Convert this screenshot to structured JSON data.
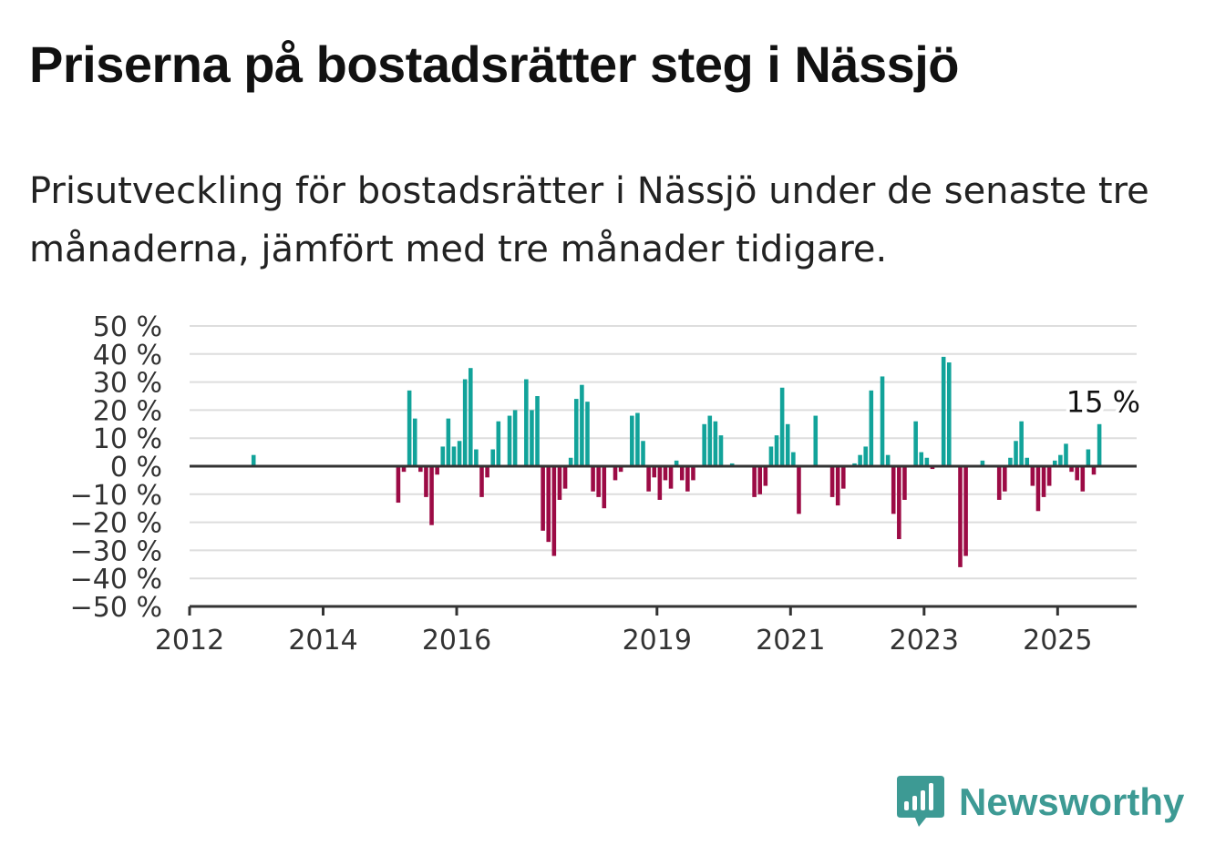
{
  "title": "Priserna på bostadsrätter steg i Nässjö",
  "subtitle": "Prisutveckling för bostadsrätter i Nässjö under de senaste tre månaderna, jämfört med tre månader tidigare.",
  "brand": {
    "name": "Newsworthy",
    "color": "#3d9a94"
  },
  "colors": {
    "positive": "#12a39a",
    "negative": "#9c0b45",
    "grid": "#dddddd",
    "axis": "#333333"
  },
  "chart_data": {
    "type": "bar",
    "title": "",
    "xlabel": "",
    "ylabel": "",
    "ylim": [
      -50,
      50
    ],
    "yticks": [
      50,
      40,
      30,
      20,
      10,
      0,
      -10,
      -20,
      -30,
      -40,
      -50
    ],
    "ytick_labels": [
      "50 %",
      "40 %",
      "30 %",
      "20 %",
      "10 %",
      "0 %",
      "−10 %",
      "−20 %",
      "−30 %",
      "−40 %",
      "−50 %"
    ],
    "xticks": [
      "2012",
      "2014",
      "2016",
      "2019",
      "2021",
      "2023",
      "2025"
    ],
    "grid": true,
    "annotation": {
      "x": "2025-07",
      "label": "15 %"
    },
    "points": [
      {
        "x": "2012-12",
        "y": 4
      },
      {
        "x": "2015-02",
        "y": -13
      },
      {
        "x": "2015-03",
        "y": -2
      },
      {
        "x": "2015-04",
        "y": 27
      },
      {
        "x": "2015-05",
        "y": 17
      },
      {
        "x": "2015-06",
        "y": -2
      },
      {
        "x": "2015-07",
        "y": -11
      },
      {
        "x": "2015-08",
        "y": -21
      },
      {
        "x": "2015-09",
        "y": -3
      },
      {
        "x": "2015-10",
        "y": 7
      },
      {
        "x": "2015-11",
        "y": 17
      },
      {
        "x": "2015-12",
        "y": 7
      },
      {
        "x": "2016-01",
        "y": 9
      },
      {
        "x": "2016-02",
        "y": 31
      },
      {
        "x": "2016-03",
        "y": 35
      },
      {
        "x": "2016-04",
        "y": 6
      },
      {
        "x": "2016-05",
        "y": -11
      },
      {
        "x": "2016-06",
        "y": -4
      },
      {
        "x": "2016-07",
        "y": 6
      },
      {
        "x": "2016-08",
        "y": 16
      },
      {
        "x": "2016-09",
        "y": 0
      },
      {
        "x": "2016-10",
        "y": 18
      },
      {
        "x": "2016-11",
        "y": 20
      },
      {
        "x": "2016-12",
        "y": 0
      },
      {
        "x": "2017-01",
        "y": 31
      },
      {
        "x": "2017-02",
        "y": 20
      },
      {
        "x": "2017-03",
        "y": 25
      },
      {
        "x": "2017-04",
        "y": -23
      },
      {
        "x": "2017-05",
        "y": -27
      },
      {
        "x": "2017-06",
        "y": -32
      },
      {
        "x": "2017-07",
        "y": -12
      },
      {
        "x": "2017-08",
        "y": -8
      },
      {
        "x": "2017-09",
        "y": 3
      },
      {
        "x": "2017-10",
        "y": 24
      },
      {
        "x": "2017-11",
        "y": 29
      },
      {
        "x": "2017-12",
        "y": 23
      },
      {
        "x": "2018-01",
        "y": -9
      },
      {
        "x": "2018-02",
        "y": -11
      },
      {
        "x": "2018-03",
        "y": -15
      },
      {
        "x": "2018-04",
        "y": 0
      },
      {
        "x": "2018-05",
        "y": -5
      },
      {
        "x": "2018-06",
        "y": -2
      },
      {
        "x": "2018-07",
        "y": 0
      },
      {
        "x": "2018-08",
        "y": 18
      },
      {
        "x": "2018-09",
        "y": 19
      },
      {
        "x": "2018-10",
        "y": 9
      },
      {
        "x": "2018-11",
        "y": -9
      },
      {
        "x": "2018-12",
        "y": -4
      },
      {
        "x": "2019-01",
        "y": -12
      },
      {
        "x": "2019-02",
        "y": -5
      },
      {
        "x": "2019-03",
        "y": -8
      },
      {
        "x": "2019-04",
        "y": 2
      },
      {
        "x": "2019-05",
        "y": -5
      },
      {
        "x": "2019-06",
        "y": -9
      },
      {
        "x": "2019-07",
        "y": -5
      },
      {
        "x": "2019-08",
        "y": 0
      },
      {
        "x": "2019-09",
        "y": 15
      },
      {
        "x": "2019-10",
        "y": 18
      },
      {
        "x": "2019-11",
        "y": 16
      },
      {
        "x": "2019-12",
        "y": 11
      },
      {
        "x": "2020-01",
        "y": 0
      },
      {
        "x": "2020-02",
        "y": 1
      },
      {
        "x": "2020-03",
        "y": 0
      },
      {
        "x": "2020-04",
        "y": 0
      },
      {
        "x": "2020-05",
        "y": 0
      },
      {
        "x": "2020-06",
        "y": -11
      },
      {
        "x": "2020-07",
        "y": -10
      },
      {
        "x": "2020-08",
        "y": -7
      },
      {
        "x": "2020-09",
        "y": 7
      },
      {
        "x": "2020-10",
        "y": 11
      },
      {
        "x": "2020-11",
        "y": 28
      },
      {
        "x": "2020-12",
        "y": 15
      },
      {
        "x": "2021-01",
        "y": 5
      },
      {
        "x": "2021-02",
        "y": -17
      },
      {
        "x": "2021-03",
        "y": 0
      },
      {
        "x": "2021-04",
        "y": 0
      },
      {
        "x": "2021-05",
        "y": 18
      },
      {
        "x": "2021-06",
        "y": 0
      },
      {
        "x": "2021-07",
        "y": 0
      },
      {
        "x": "2021-08",
        "y": -11
      },
      {
        "x": "2021-09",
        "y": -14
      },
      {
        "x": "2021-10",
        "y": -8
      },
      {
        "x": "2021-11",
        "y": 0
      },
      {
        "x": "2021-12",
        "y": 1
      },
      {
        "x": "2022-01",
        "y": 4
      },
      {
        "x": "2022-02",
        "y": 7
      },
      {
        "x": "2022-03",
        "y": 27
      },
      {
        "x": "2022-04",
        "y": 0
      },
      {
        "x": "2022-05",
        "y": 32
      },
      {
        "x": "2022-06",
        "y": 4
      },
      {
        "x": "2022-07",
        "y": -17
      },
      {
        "x": "2022-08",
        "y": -26
      },
      {
        "x": "2022-09",
        "y": -12
      },
      {
        "x": "2022-10",
        "y": 0
      },
      {
        "x": "2022-11",
        "y": 16
      },
      {
        "x": "2022-12",
        "y": 5
      },
      {
        "x": "2023-01",
        "y": 3
      },
      {
        "x": "2023-02",
        "y": -1
      },
      {
        "x": "2023-03",
        "y": 0
      },
      {
        "x": "2023-04",
        "y": 39
      },
      {
        "x": "2023-05",
        "y": 37
      },
      {
        "x": "2023-06",
        "y": 0
      },
      {
        "x": "2023-07",
        "y": -36
      },
      {
        "x": "2023-08",
        "y": -32
      },
      {
        "x": "2023-09",
        "y": 0
      },
      {
        "x": "2023-10",
        "y": 0
      },
      {
        "x": "2023-11",
        "y": 2
      },
      {
        "x": "2023-12",
        "y": 0
      },
      {
        "x": "2024-01",
        "y": 0
      },
      {
        "x": "2024-02",
        "y": -12
      },
      {
        "x": "2024-03",
        "y": -9
      },
      {
        "x": "2024-04",
        "y": 3
      },
      {
        "x": "2024-05",
        "y": 9
      },
      {
        "x": "2024-06",
        "y": 16
      },
      {
        "x": "2024-07",
        "y": 3
      },
      {
        "x": "2024-08",
        "y": -7
      },
      {
        "x": "2024-09",
        "y": -16
      },
      {
        "x": "2024-10",
        "y": -11
      },
      {
        "x": "2024-11",
        "y": -7
      },
      {
        "x": "2024-12",
        "y": 2
      },
      {
        "x": "2025-01",
        "y": 4
      },
      {
        "x": "2025-02",
        "y": 8
      },
      {
        "x": "2025-03",
        "y": -2
      },
      {
        "x": "2025-04",
        "y": -5
      },
      {
        "x": "2025-05",
        "y": -9
      },
      {
        "x": "2025-06",
        "y": 6
      },
      {
        "x": "2025-07",
        "y": -3
      },
      {
        "x": "2025-08",
        "y": 15
      }
    ]
  }
}
